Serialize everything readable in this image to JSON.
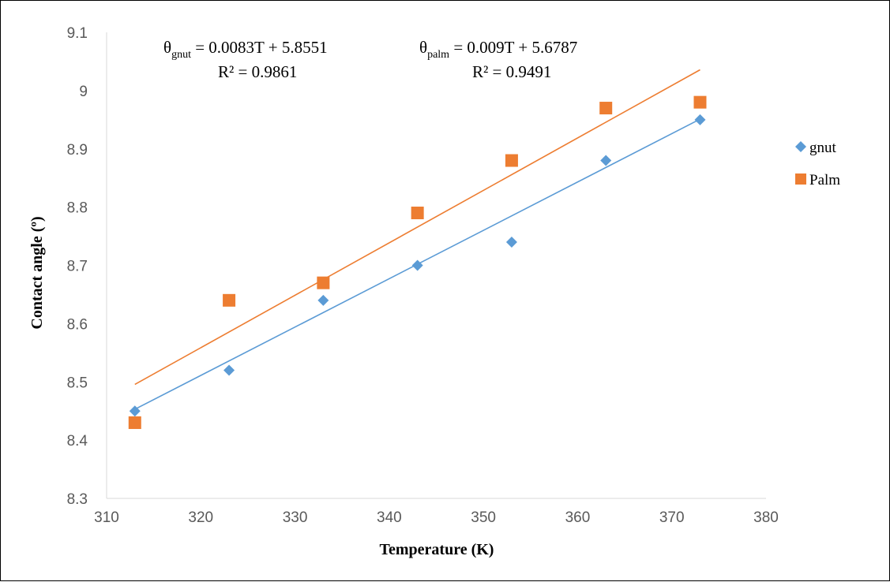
{
  "chart_data": {
    "type": "scatter",
    "xlabel": "Temperature (K)",
    "ylabel": "Contact angle (º)",
    "xlim": [
      310,
      380
    ],
    "ylim": [
      8.3,
      9.1
    ],
    "x_ticks": [
      "310",
      "320",
      "330",
      "340",
      "350",
      "360",
      "370",
      "380"
    ],
    "y_ticks": [
      "8.3",
      "8.4",
      "8.5",
      "8.6",
      "8.7",
      "8.8",
      "8.9",
      "9",
      "9.1"
    ],
    "grid": false,
    "legend_position": "right",
    "series": [
      {
        "name": "gnut",
        "marker": "diamond",
        "color": "#5B9BD5",
        "x": [
          313,
          323,
          333,
          343,
          353,
          363,
          373
        ],
        "y": [
          8.45,
          8.52,
          8.64,
          8.7,
          8.74,
          8.88,
          8.95
        ],
        "trendline": {
          "slope": 0.0083,
          "intercept": 5.8551,
          "equation_prefix": "θ",
          "equation_subscript": "gnut",
          "equation_rest": " = 0.0083T + 5.8551",
          "r2_label": "R² = 0.9861"
        }
      },
      {
        "name": "Palm",
        "marker": "square",
        "color": "#ED7D31",
        "x": [
          313,
          323,
          333,
          343,
          353,
          363,
          373
        ],
        "y": [
          8.43,
          8.64,
          8.67,
          8.79,
          8.88,
          8.97,
          8.98
        ],
        "trendline": {
          "slope": 0.009,
          "intercept": 5.6787,
          "equation_prefix": "θ",
          "equation_subscript": "palm",
          "equation_rest": " = 0.009T + 5.6787",
          "r2_label": "R² = 0.9491"
        }
      }
    ]
  }
}
